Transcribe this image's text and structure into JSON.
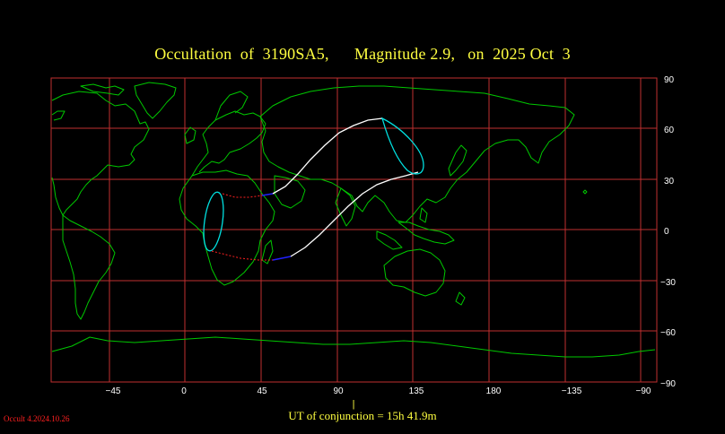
{
  "title": {
    "label": "Occultation  of  3190SA5,",
    "magnitude": "Magnitude 2.9,",
    "date": "on  2025 Oct  3"
  },
  "axes": {
    "x_ticks": [
      "−45",
      "0",
      "45",
      "90",
      "135",
      "180",
      "−135",
      "−90"
    ],
    "y_ticks": [
      "90",
      "60",
      "30",
      "0",
      "−30",
      "−60",
      "−90"
    ]
  },
  "footer": {
    "ut_marker": "|",
    "ut_text": "UT of conjunction = 15h 41.9m",
    "version": "Occult 4.2024.10.26"
  },
  "colors": {
    "grid": "#c03030",
    "coast": "#00c800",
    "path": "#ffffff",
    "limit": "#00e0e0",
    "dotted": "#ff2020",
    "daylight": "#2020ff",
    "text": "#ffff40"
  }
}
